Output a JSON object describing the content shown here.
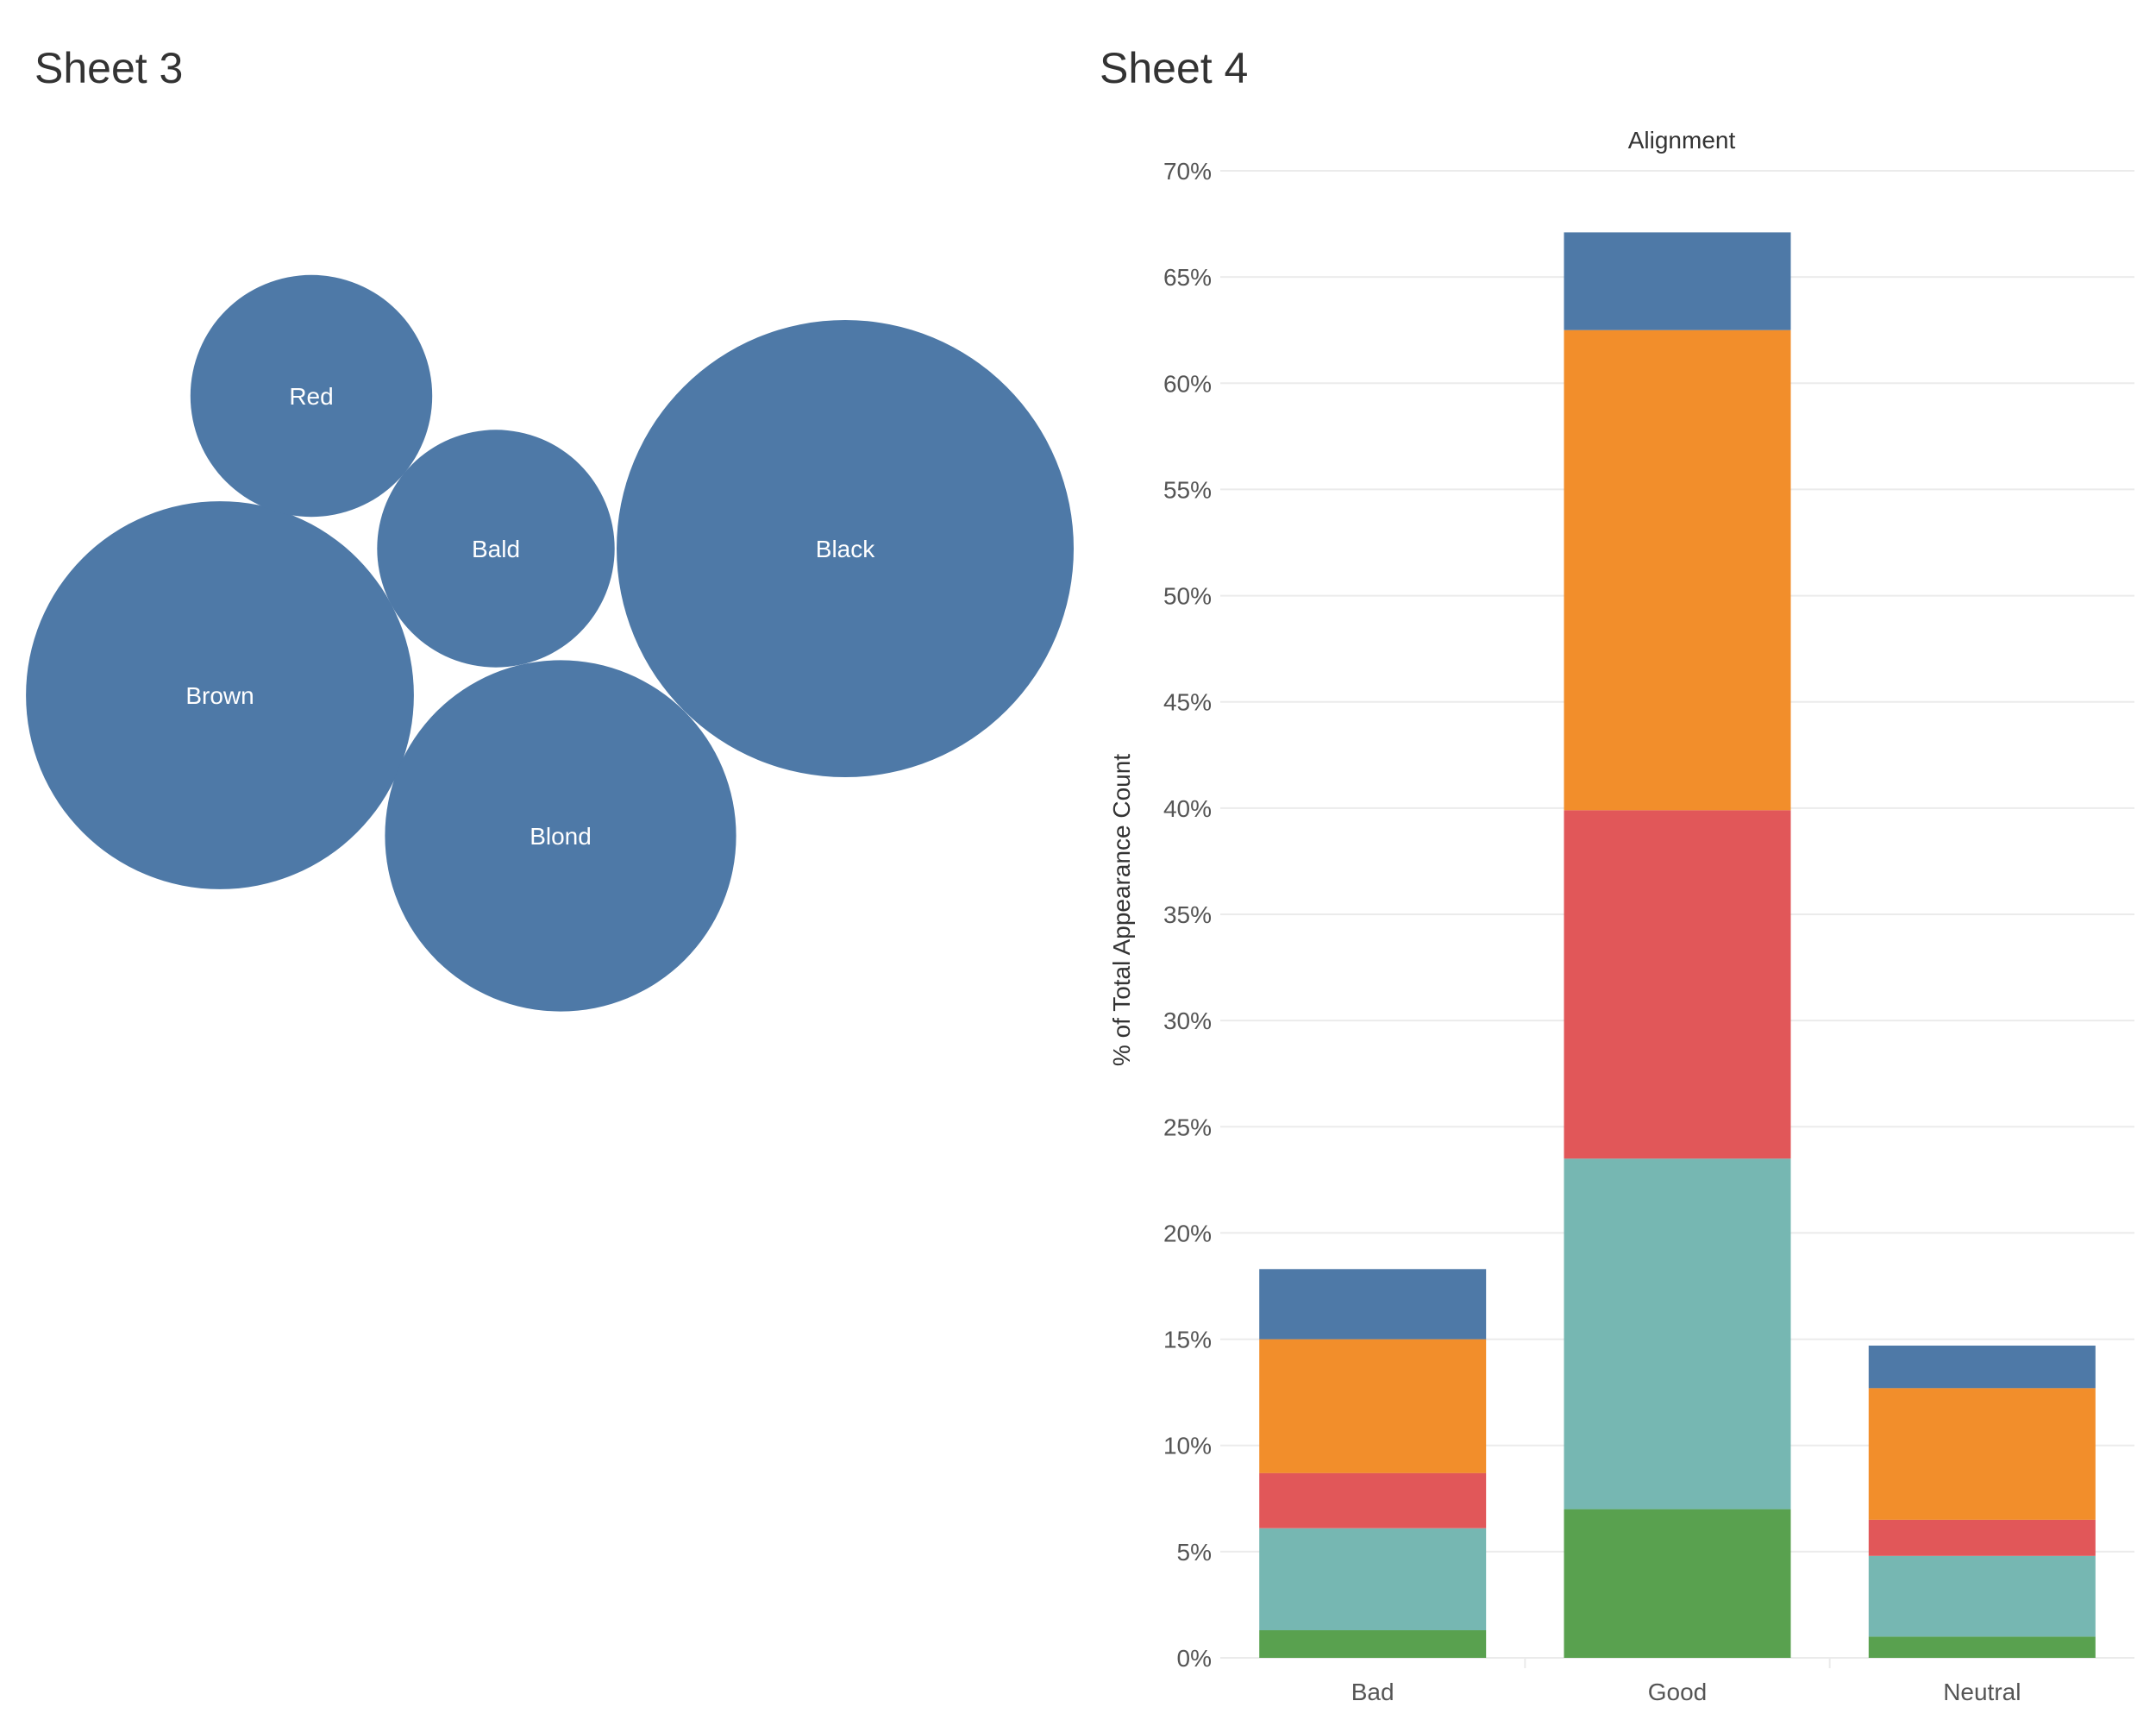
{
  "chart_data": [
    {
      "type": "bubble",
      "title": "Sheet 3",
      "color": "#4e79a7",
      "label_color": "#ffffff",
      "bubbles": [
        {
          "label": "Black",
          "value": 100
        },
        {
          "label": "Brown",
          "value": 72
        },
        {
          "label": "Blond",
          "value": 59
        },
        {
          "label": "Red",
          "value": 28
        },
        {
          "label": "Bald",
          "value": 27
        }
      ]
    },
    {
      "type": "bar",
      "stacked": true,
      "title": "Sheet 4",
      "column_header": "Alignment",
      "ylabel": "% of Total Appearance Count",
      "ylim": [
        0,
        70
      ],
      "yticks": [
        0,
        5,
        10,
        15,
        20,
        25,
        30,
        35,
        40,
        45,
        50,
        55,
        60,
        65,
        70
      ],
      "ytick_labels": [
        "0%",
        "5%",
        "10%",
        "15%",
        "20%",
        "25%",
        "30%",
        "35%",
        "40%",
        "45%",
        "50%",
        "55%",
        "60%",
        "65%",
        "70%"
      ],
      "categories": [
        "Bad",
        "Good",
        "Neutral"
      ],
      "series": [
        {
          "name": "green",
          "color": "#59a14f",
          "values": [
            1.3,
            7.0,
            1.0
          ]
        },
        {
          "name": "teal",
          "color": "#76b7b2",
          "values": [
            4.8,
            16.5,
            3.8
          ]
        },
        {
          "name": "red",
          "color": "#e15759",
          "values": [
            2.6,
            16.4,
            1.7
          ]
        },
        {
          "name": "orange",
          "color": "#f28e2b",
          "values": [
            6.3,
            22.6,
            6.2
          ]
        },
        {
          "name": "blue",
          "color": "#4e79a7",
          "values": [
            3.3,
            4.6,
            2.0
          ]
        }
      ],
      "gridline_color": "#ebebeb",
      "tick_color": "#555555"
    }
  ]
}
